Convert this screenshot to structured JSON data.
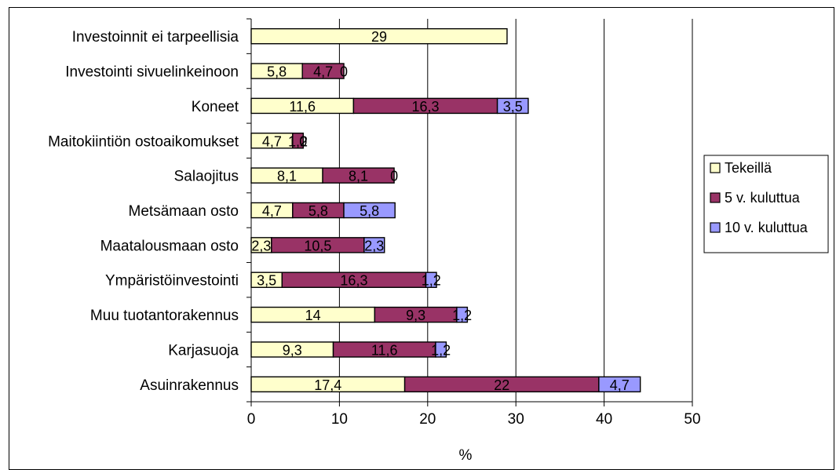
{
  "chart_data": {
    "type": "bar",
    "orientation": "horizontal",
    "stacked": true,
    "categories": [
      "Investoinnit ei tarpeellisia",
      "Investointi sivuelinkeinoon",
      "Koneet",
      "Maitokiintiön ostoaikomukset",
      "Salaojitus",
      "Metsämaan osto",
      "Maatalousmaan osto",
      "Ympäristöinvestointi",
      "Muu tuotantorakennus",
      "Karjasuoja",
      "Asuinrakennus"
    ],
    "series": [
      {
        "name": "Tekeillä",
        "color": "#FFFFCC",
        "values": [
          29,
          5.8,
          11.6,
          4.7,
          8.1,
          4.7,
          2.3,
          3.5,
          14,
          9.3,
          17.4
        ],
        "labels": [
          "29",
          "5,8",
          "11,6",
          "4,7",
          "8,1",
          "4,7",
          "2,3",
          "3,5",
          "14",
          "9,3",
          "17,4"
        ]
      },
      {
        "name": "5 v. kuluttua",
        "color": "#993366",
        "values": [
          0,
          4.7,
          16.3,
          1.2,
          8.1,
          5.8,
          10.5,
          16.3,
          9.3,
          11.6,
          22
        ],
        "labels": [
          "",
          "4,7",
          "16,3",
          "1,2",
          "8,1",
          "5,8",
          "10,5",
          "16,3",
          "9,3",
          "11,6",
          "22"
        ]
      },
      {
        "name": "10 v. kuluttua",
        "color": "#9999FF",
        "values": [
          0,
          0,
          3.5,
          0,
          0,
          5.8,
          2.3,
          1.2,
          1.2,
          1.2,
          4.7
        ],
        "labels": [
          "",
          "0",
          "3,5",
          "0",
          "0",
          "5,8",
          "2,3",
          "1,2",
          "1,2",
          "1,2",
          "4,7"
        ]
      }
    ],
    "xlim": [
      0,
      50
    ],
    "xticks": [
      "0",
      "10",
      "20",
      "30",
      "40",
      "50"
    ],
    "xlabel": "%",
    "grid": "vertical",
    "legend": "right"
  }
}
